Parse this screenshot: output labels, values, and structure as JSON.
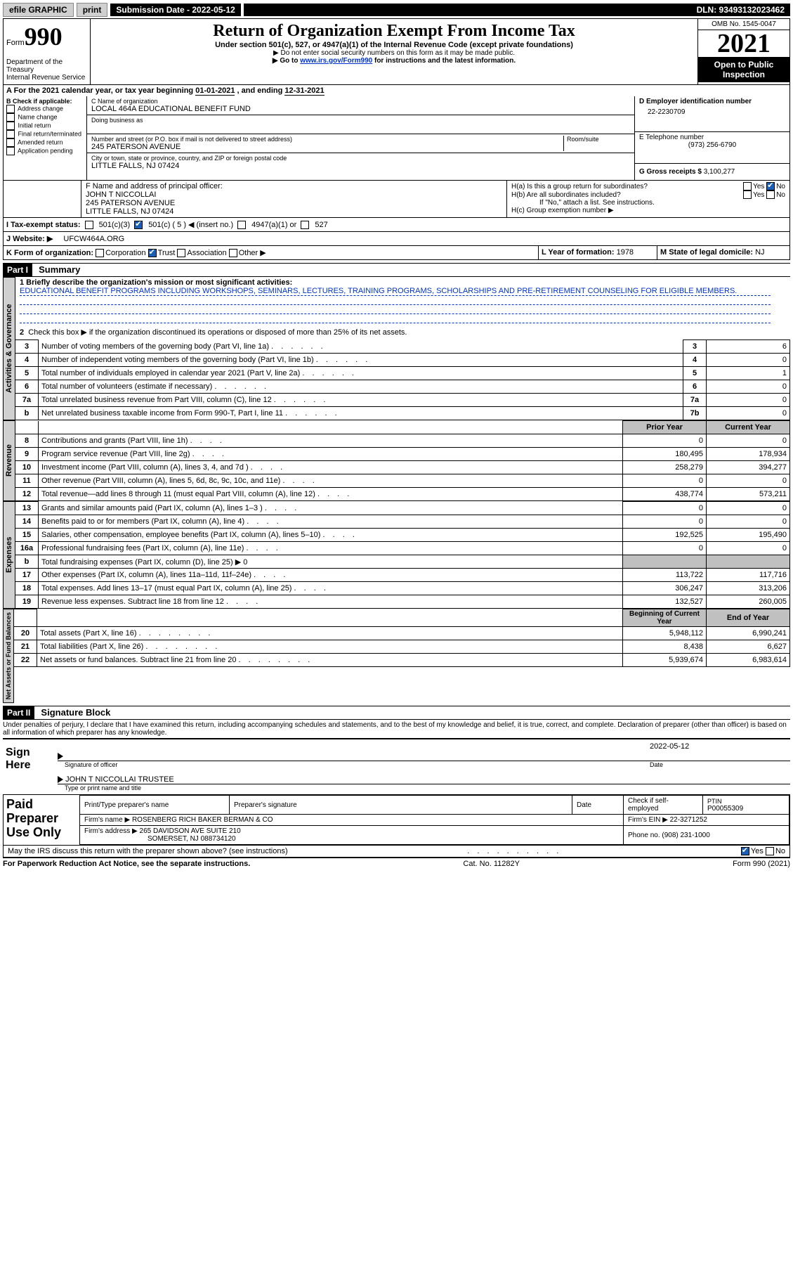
{
  "topbar": {
    "efile": "efile GRAPHIC",
    "print": "print",
    "submission": "Submission Date - 2022-05-12",
    "dln": "DLN: 93493132023462"
  },
  "header": {
    "form_word": "Form",
    "form_num": "990",
    "title": "Return of Organization Exempt From Income Tax",
    "sub": "Under section 501(c), 527, or 4947(a)(1) of the Internal Revenue Code (except private foundations)",
    "instr1": "▶ Do not enter social security numbers on this form as it may be made public.",
    "instr2_pre": "▶ Go to ",
    "instr2_link": "www.irs.gov/Form990",
    "instr2_post": " for instructions and the latest information.",
    "dept": "Department of the Treasury",
    "irs": "Internal Revenue Service",
    "omb": "OMB No. 1545-0047",
    "year": "2021",
    "inspect1": "Open to Public",
    "inspect2": "Inspection"
  },
  "lineA": {
    "text_pre": "A For the 2021 calendar year, or tax year beginning ",
    "begin": "01-01-2021",
    "mid": " , and ending ",
    "end": "12-31-2021"
  },
  "colB": {
    "title": "B Check if applicable:",
    "opts": [
      "Address change",
      "Name change",
      "Initial return",
      "Final return/terminated",
      "Amended return",
      "Application pending"
    ]
  },
  "colC": {
    "name_label": "C Name of organization",
    "name": "LOCAL 464A EDUCATIONAL BENEFIT FUND",
    "dba_label": "Doing business as",
    "addr_label": "Number and street (or P.O. box if mail is not delivered to street address)",
    "room_label": "Room/suite",
    "addr": "245 PATERSON AVENUE",
    "city_label": "City or town, state or province, country, and ZIP or foreign postal code",
    "city": "LITTLE FALLS, NJ  07424"
  },
  "colD": {
    "label": "D Employer identification number",
    "val": "22-2230709"
  },
  "colE": {
    "label": "E Telephone number",
    "val": "(973) 256-6790"
  },
  "colG": {
    "label": "G Gross receipts $",
    "val": "3,100,277"
  },
  "rowF": {
    "label": "F Name and address of principal officer:",
    "name": "JOHN T NICCOLLAI",
    "addr1": "245 PATERSON AVENUE",
    "addr2": "LITTLE FALLS, NJ  07424"
  },
  "rowH": {
    "a": "H(a)  Is this a group return for subordinates?",
    "b": "H(b)  Are all subordinates included?",
    "b_note": "If \"No,\" attach a list. See instructions.",
    "c": "H(c)  Group exemption number ▶",
    "yes": "Yes",
    "no": "No"
  },
  "rowI": {
    "label": "I  Tax-exempt status:",
    "o1": "501(c)(3)",
    "o2": "501(c) ( 5 ) ◀ (insert no.)",
    "o3": "4947(a)(1) or",
    "o4": "527"
  },
  "rowJ": {
    "label": "J  Website: ▶",
    "val": "UFCW464A.ORG"
  },
  "rowK": {
    "label": "K Form of organization:",
    "o1": "Corporation",
    "o2": "Trust",
    "o3": "Association",
    "o4": "Other ▶"
  },
  "rowL": {
    "label": "L Year of formation:",
    "val": "1978"
  },
  "rowM": {
    "label": "M State of legal domicile:",
    "val": "NJ"
  },
  "part1": {
    "bar": "Part I",
    "title": "Summary"
  },
  "summary": {
    "l1_label": "1  Briefly describe the organization's mission or most significant activities:",
    "l1_text": "EDUCATIONAL BENEFIT PROGRAMS INCLUDING WORKSHOPS, SEMINARS, LECTURES, TRAINING PROGRAMS, SCHOLARSHIPS AND PRE-RETIREMENT COUNSELING FOR ELIGIBLE MEMBERS.",
    "l2": "Check this box ▶       if the organization discontinued its operations or disposed of more than 25% of its net assets."
  },
  "sideTabs": {
    "t1": "Activities & Governance",
    "t2": "Revenue",
    "t3": "Expenses",
    "t4": "Net Assets or Fund Balances"
  },
  "rows_ag": [
    {
      "n": "3",
      "d": "Number of voting members of the governing body (Part VI, line 1a)",
      "b": "3",
      "v": "6"
    },
    {
      "n": "4",
      "d": "Number of independent voting members of the governing body (Part VI, line 1b)",
      "b": "4",
      "v": "0"
    },
    {
      "n": "5",
      "d": "Total number of individuals employed in calendar year 2021 (Part V, line 2a)",
      "b": "5",
      "v": "1"
    },
    {
      "n": "6",
      "d": "Total number of volunteers (estimate if necessary)",
      "b": "6",
      "v": "0"
    },
    {
      "n": "7a",
      "d": "Total unrelated business revenue from Part VIII, column (C), line 12",
      "b": "7a",
      "v": "0"
    },
    {
      "n": "b",
      "d": "Net unrelated business taxable income from Form 990-T, Part I, line 11",
      "b": "7b",
      "v": "0"
    }
  ],
  "col_hdr": {
    "py": "Prior Year",
    "cy": "Current Year"
  },
  "rows_rev": [
    {
      "n": "8",
      "d": "Contributions and grants (Part VIII, line 1h)",
      "py": "0",
      "cy": "0"
    },
    {
      "n": "9",
      "d": "Program service revenue (Part VIII, line 2g)",
      "py": "180,495",
      "cy": "178,934"
    },
    {
      "n": "10",
      "d": "Investment income (Part VIII, column (A), lines 3, 4, and 7d )",
      "py": "258,279",
      "cy": "394,277"
    },
    {
      "n": "11",
      "d": "Other revenue (Part VIII, column (A), lines 5, 6d, 8c, 9c, 10c, and 11e)",
      "py": "0",
      "cy": "0"
    },
    {
      "n": "12",
      "d": "Total revenue—add lines 8 through 11 (must equal Part VIII, column (A), line 12)",
      "py": "438,774",
      "cy": "573,211"
    }
  ],
  "rows_exp": [
    {
      "n": "13",
      "d": "Grants and similar amounts paid (Part IX, column (A), lines 1–3 )",
      "py": "0",
      "cy": "0"
    },
    {
      "n": "14",
      "d": "Benefits paid to or for members (Part IX, column (A), line 4)",
      "py": "0",
      "cy": "0"
    },
    {
      "n": "15",
      "d": "Salaries, other compensation, employee benefits (Part IX, column (A), lines 5–10)",
      "py": "192,525",
      "cy": "195,490"
    },
    {
      "n": "16a",
      "d": "Professional fundraising fees (Part IX, column (A), line 11e)",
      "py": "0",
      "cy": "0"
    },
    {
      "n": "b",
      "d": "Total fundraising expenses (Part IX, column (D), line 25) ▶ 0",
      "shade": true
    },
    {
      "n": "17",
      "d": "Other expenses (Part IX, column (A), lines 11a–11d, 11f–24e)",
      "py": "113,722",
      "cy": "117,716"
    },
    {
      "n": "18",
      "d": "Total expenses. Add lines 13–17 (must equal Part IX, column (A), line 25)",
      "py": "306,247",
      "cy": "313,206"
    },
    {
      "n": "19",
      "d": "Revenue less expenses. Subtract line 18 from line 12",
      "py": "132,527",
      "cy": "260,005"
    }
  ],
  "col_hdr2": {
    "py": "Beginning of Current Year",
    "cy": "End of Year"
  },
  "rows_net": [
    {
      "n": "20",
      "d": "Total assets (Part X, line 16)",
      "py": "5,948,112",
      "cy": "6,990,241"
    },
    {
      "n": "21",
      "d": "Total liabilities (Part X, line 26)",
      "py": "8,438",
      "cy": "6,627"
    },
    {
      "n": "22",
      "d": "Net assets or fund balances. Subtract line 21 from line 20",
      "py": "5,939,674",
      "cy": "6,983,614"
    }
  ],
  "part2": {
    "bar": "Part II",
    "title": "Signature Block"
  },
  "sig": {
    "decl": "Under penalties of perjury, I declare that I have examined this return, including accompanying schedules and statements, and to the best of my knowledge and belief, it is true, correct, and complete. Declaration of preparer (other than officer) is based on all information of which preparer has any knowledge.",
    "sign_here": "Sign Here",
    "sig_officer": "Signature of officer",
    "date_label": "Date",
    "date": "2022-05-12",
    "name": "JOHN T NICCOLLAI  TRUSTEE",
    "name_label": "Type or print name and title"
  },
  "paid": {
    "title": "Paid Preparer Use Only",
    "r1c1": "Print/Type preparer's name",
    "r1c2": "Preparer's signature",
    "r1c3": "Date",
    "r1c4a": "Check         if self-employed",
    "r1c5l": "PTIN",
    "r1c5v": "P00055309",
    "r2l": "Firm's name     ▶",
    "r2v": "ROSENBERG RICH BAKER BERMAN & CO",
    "r2r": "Firm's EIN ▶ 22-3271252",
    "r3l": "Firm's address ▶",
    "r3v1": "265 DAVIDSON AVE SUITE 210",
    "r3v2": "SOMERSET, NJ  088734120",
    "r3r": "Phone no. (908) 231-1000"
  },
  "discuss": {
    "q": "May the IRS discuss this return with the preparer shown above? (see instructions)",
    "yes": "Yes",
    "no": "No"
  },
  "footer": {
    "l": "For Paperwork Reduction Act Notice, see the separate instructions.",
    "m": "Cat. No. 11282Y",
    "r": "Form 990 (2021)"
  }
}
